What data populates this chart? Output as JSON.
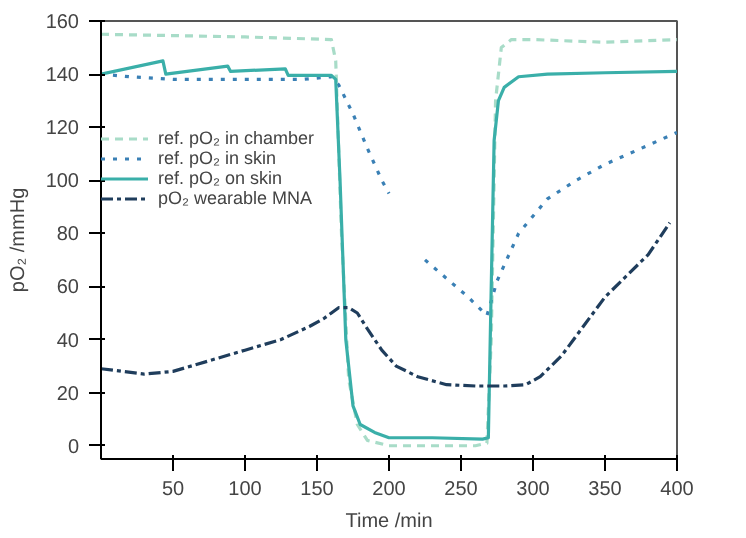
{
  "chart_data": {
    "type": "line",
    "xlabel": "Time /min",
    "ylabel": "pO₂ /mmHg",
    "xlim": [
      0,
      400
    ],
    "ylim": [
      -5,
      160
    ],
    "xticks": [
      50,
      100,
      150,
      200,
      250,
      300,
      350,
      400
    ],
    "yticks": [
      0,
      20,
      40,
      60,
      80,
      100,
      120,
      140,
      160
    ],
    "grid": false,
    "legend": "top left",
    "marker": "none",
    "series": [
      {
        "name": "ref. pO₂ in chamber",
        "color": "#a8dcc8",
        "line_style": "dashed",
        "x": [
          0,
          100,
          160,
          163,
          167,
          172,
          178,
          185,
          200,
          260,
          268,
          271,
          274,
          278,
          285,
          300,
          350,
          400
        ],
        "values": [
          155,
          154,
          153,
          145,
          80,
          25,
          8,
          2,
          0,
          0,
          1,
          40,
          130,
          150,
          153,
          153,
          152,
          153
        ]
      },
      {
        "name": "ref. pO₂ in skin",
        "color": "#3a80b5",
        "line_style": "dotted",
        "x": [
          0,
          20,
          50,
          100,
          140,
          160,
          165,
          175,
          185,
          195,
          200,
          205,
          225,
          240,
          255,
          268,
          275,
          290,
          310,
          330,
          350,
          375,
          400
        ],
        "values": [
          140,
          139,
          138,
          138,
          138,
          139,
          136,
          125,
          112,
          100,
          95,
          null,
          70,
          63,
          56,
          49,
          62,
          80,
          93,
          100,
          106,
          112,
          118
        ]
      },
      {
        "name": "ref. pO₂ on skin",
        "color": "#3aafa9",
        "line_style": "solid",
        "x": [
          0,
          43,
          45,
          88,
          90,
          128,
          130,
          160,
          163,
          166,
          170,
          175,
          180,
          190,
          200,
          230,
          265,
          269,
          271,
          273,
          276,
          280,
          290,
          310,
          350,
          400
        ],
        "values": [
          140,
          145,
          140,
          143,
          141,
          142,
          139.5,
          139.5,
          138,
          100,
          40,
          15,
          8,
          5,
          3,
          3,
          2.5,
          3,
          60,
          115,
          130,
          135,
          139,
          140,
          140.5,
          141
        ]
      },
      {
        "name": "pO₂ wearable MNA",
        "color": "#1f3d5c",
        "line_style": "dashdot",
        "x": [
          0,
          15,
          30,
          50,
          75,
          100,
          125,
          145,
          155,
          165,
          172,
          178,
          185,
          195,
          205,
          220,
          240,
          260,
          280,
          295,
          305,
          320,
          335,
          350,
          365,
          380,
          395
        ],
        "values": [
          29,
          28,
          27,
          28,
          32,
          36,
          40,
          45,
          48,
          52,
          52,
          50,
          44,
          36,
          30,
          26,
          23,
          22.5,
          22.5,
          23,
          26,
          34,
          45,
          56,
          64,
          72,
          84
        ]
      }
    ]
  }
}
